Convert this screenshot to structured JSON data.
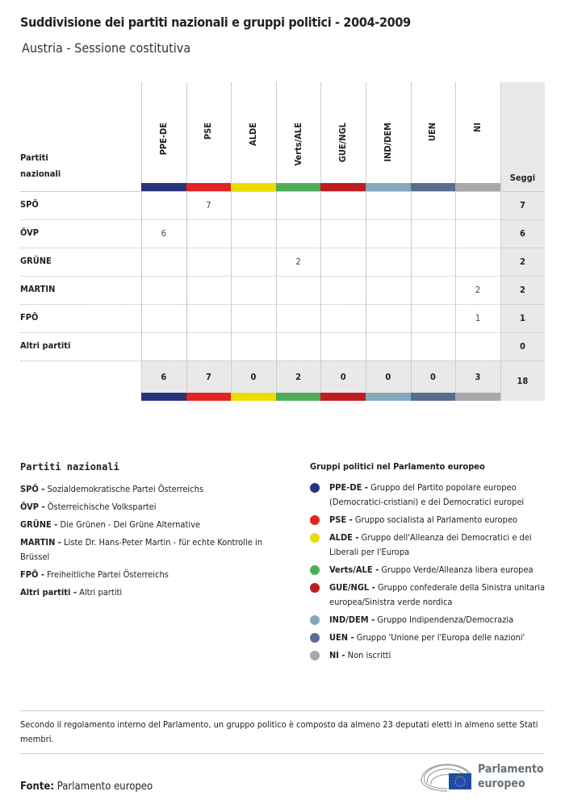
{
  "title": "Suddivisione dei partiti nazionali e gruppi politici - 2004-2009",
  "subtitle": "Austria - Sessione costitutiva",
  "chart_data": {
    "type": "table",
    "row_header": "Partiti nazionali",
    "total_header": "Seggi",
    "groups": [
      {
        "name": "PPE-DE",
        "color": "#27347a"
      },
      {
        "name": "PSE",
        "color": "#e32322"
      },
      {
        "name": "ALDE",
        "color": "#ecdd00"
      },
      {
        "name": "Verts/ALE",
        "color": "#4fad56"
      },
      {
        "name": "GUE/NGL",
        "color": "#c01c1e"
      },
      {
        "name": "IND/DEM",
        "color": "#84a9bd"
      },
      {
        "name": "UEN",
        "color": "#5a6b91"
      },
      {
        "name": "NI",
        "color": "#a8a8a8"
      }
    ],
    "rows": [
      {
        "party": "SPÖ",
        "values": [
          "",
          "7",
          "",
          "",
          "",
          "",
          "",
          ""
        ],
        "total": "7"
      },
      {
        "party": "ÖVP",
        "values": [
          "6",
          "",
          "",
          "",
          "",
          "",
          "",
          ""
        ],
        "total": "6"
      },
      {
        "party": "GRÜNE",
        "values": [
          "",
          "",
          "",
          "2",
          "",
          "",
          "",
          ""
        ],
        "total": "2"
      },
      {
        "party": "MARTIN",
        "values": [
          "",
          "",
          "",
          "",
          "",
          "",
          "",
          "2"
        ],
        "total": "2"
      },
      {
        "party": "FPÖ",
        "values": [
          "",
          "",
          "",
          "",
          "",
          "",
          "",
          "1"
        ],
        "total": "1"
      },
      {
        "party": "Altri partiti",
        "values": [
          "",
          "",
          "",
          "",
          "",
          "",
          "",
          ""
        ],
        "total": "0"
      }
    ],
    "column_totals": [
      "6",
      "7",
      "0",
      "2",
      "0",
      "0",
      "0",
      "3"
    ],
    "grand_total": "18"
  },
  "legend_national": {
    "heading": "Partiti nazionali",
    "items": [
      {
        "abbr": "SPÖ -",
        "desc": "Sozialdemokratische Partei Österreichs"
      },
      {
        "abbr": "ÖVP -",
        "desc": "Österreichische Volkspartei"
      },
      {
        "abbr": "GRÜNE -",
        "desc": "Die Grünen - Dei Grüne Alternative"
      },
      {
        "abbr": "MARTIN -",
        "desc": "Liste Dr. Hans-Peter Martin - für echte Kontrolle in Brüssel"
      },
      {
        "abbr": "FPÖ -",
        "desc": "Freiheitliche Partei Österreichs"
      },
      {
        "abbr": "Altri partiti -",
        "desc": "Altri partiti"
      }
    ]
  },
  "legend_groups": {
    "heading": "Gruppi politici nel Parlamento europeo",
    "items": [
      {
        "abbr": "PPE-DE -",
        "desc": "Gruppo del Partito popolare europeo (Democratici-cristiani) e dei Democratici europei"
      },
      {
        "abbr": "PSE -",
        "desc": "Gruppo socialista al Parlamento europeo"
      },
      {
        "abbr": "ALDE -",
        "desc": "Gruppo dell'Alleanza dei Democratici e dei Liberali per l'Europa"
      },
      {
        "abbr": "Verts/ALE -",
        "desc": "Gruppo Verde/Alleanza libera europea"
      },
      {
        "abbr": "GUE/NGL -",
        "desc": "Gruppo confederale della Sinistra unitaria europea/Sinistra verde nordica"
      },
      {
        "abbr": "IND/DEM -",
        "desc": "Gruppo Indipendenza/Democrazia"
      },
      {
        "abbr": "UEN -",
        "desc": "Gruppo 'Unione per l'Europa delle nazioni'"
      },
      {
        "abbr": "NI -",
        "desc": "Non iscritti"
      }
    ]
  },
  "note": "Secondo il regolamento interno del Parlamento, un gruppo politico è composto da almeno 23 deputati eletti in almeno sette Stati membri.",
  "source_label": "Fonte:",
  "source": "Parlamento europeo",
  "logo": {
    "line1": "Parlamento",
    "line2": "europeo"
  }
}
